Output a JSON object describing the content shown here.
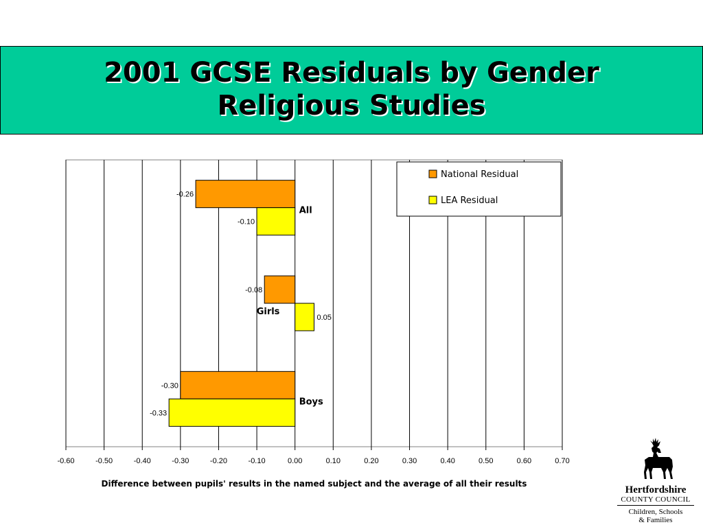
{
  "title": {
    "line1": "2001 GCSE Residuals by Gender",
    "line2": "Religious Studies"
  },
  "chart_data": {
    "type": "bar",
    "orientation": "horizontal",
    "categories": [
      "All",
      "Girls",
      "Boys"
    ],
    "series": [
      {
        "name": "National Residual",
        "values": [
          -0.26,
          -0.08,
          -0.3
        ],
        "color": "#ff9900"
      },
      {
        "name": "LEA Residual",
        "values": [
          -0.1,
          0.05,
          -0.33
        ],
        "color": "#ffff00"
      }
    ],
    "data_labels": [
      [
        "-0.26",
        "-0.10"
      ],
      [
        "-0.08",
        "0.05"
      ],
      [
        "-0.30",
        "-0.33"
      ]
    ],
    "xlim": [
      -0.6,
      0.7
    ],
    "x_ticks": [
      "-0.60",
      "-0.50",
      "-0.40",
      "-0.30",
      "-0.20",
      "-0.10",
      "0.00",
      "0.10",
      "0.20",
      "0.30",
      "0.40",
      "0.50",
      "0.60",
      "0.70"
    ],
    "xlabel": "Difference between pupils' results in the named subject and the average of all their results",
    "grid": "vertical",
    "legend_position": "top-right"
  },
  "logo": {
    "name": "Hertfordshire",
    "council": "COUNTY COUNCIL",
    "sub1": "Children, Schools",
    "sub2": "& Families",
    "icon": "stag-icon"
  }
}
